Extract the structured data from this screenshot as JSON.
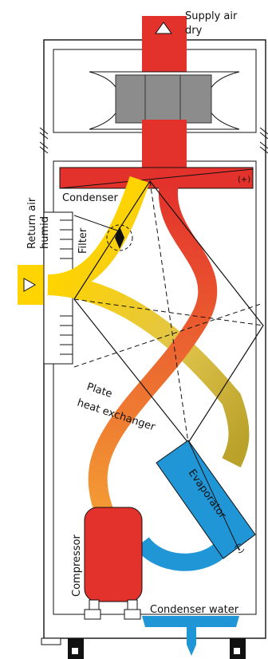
{
  "labels": {
    "supply_line1": "Supply air",
    "supply_line2": "dry",
    "return_line1": "Return air",
    "return_line2": "humid",
    "condenser": "Condenser",
    "condenser_sign": "(+)",
    "filter": "Filter",
    "plate_line1": "Plate",
    "plate_line2": "heat exchanger",
    "evaporator": "Evaporator",
    "evaporator_sign": "(–)",
    "compressor": "Compressor",
    "condenser_water": "Condenser water"
  },
  "colors": {
    "hot": "#e3312c",
    "warm": "#f0832f",
    "moist_air": "#ffd400",
    "moist_air_fade": "#b9a12a",
    "cold": "#2196d6",
    "fan_grey": "#8c8c8c",
    "outline": "#111111"
  }
}
